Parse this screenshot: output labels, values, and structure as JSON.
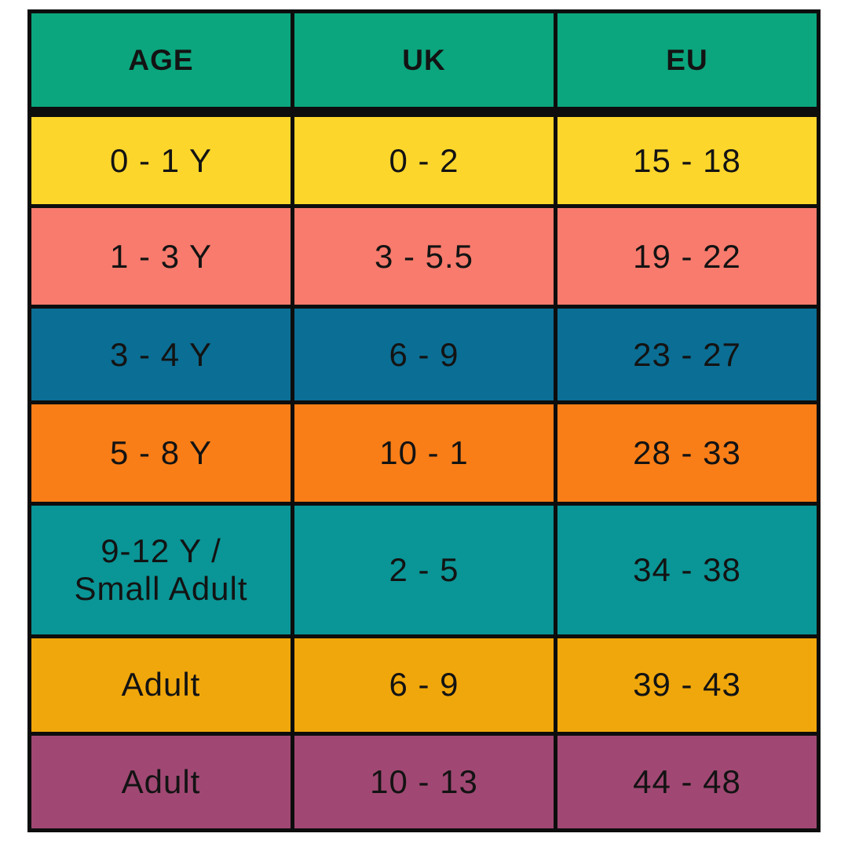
{
  "chart_data": {
    "type": "table",
    "columns": [
      "AGE",
      "UK",
      "EU"
    ],
    "rows": [
      {
        "cells": [
          "0 - 1 Y",
          "0 - 2",
          "15 - 18"
        ],
        "color": "#FDD62B"
      },
      {
        "cells": [
          "1 - 3 Y",
          "3 - 5.5",
          "19 - 22"
        ],
        "color": "#F87B6D"
      },
      {
        "cells": [
          "3 - 4 Y",
          "6 - 9",
          "23 - 27"
        ],
        "color": "#0B6E94"
      },
      {
        "cells": [
          "5 - 8 Y",
          "10 - 1",
          "28 - 33"
        ],
        "color": "#F97E17"
      },
      {
        "cells": [
          "9-12 Y /\nSmall Adult",
          "2 - 5",
          "34 - 38"
        ],
        "color": "#0A9596"
      },
      {
        "cells": [
          "Adult",
          "6 - 9",
          "39 - 43"
        ],
        "color": "#F0A70B"
      },
      {
        "cells": [
          "Adult",
          "10 - 13",
          "44 - 48"
        ],
        "color": "#A04873"
      }
    ],
    "header_bg": "#0BA67E",
    "border_color": "#0D0D0D",
    "text_color": "#131313"
  }
}
